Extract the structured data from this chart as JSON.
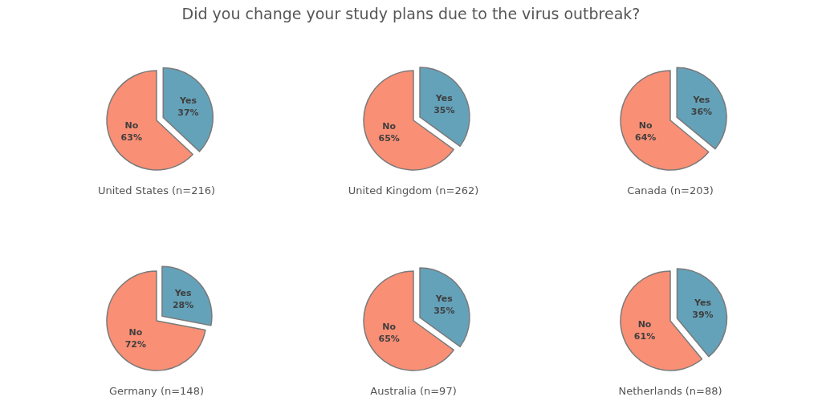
{
  "chart_data": [
    {
      "type": "pie",
      "title": "Did you change your study plans due to the virus outbreak?",
      "xlabel": "United States (n=216)",
      "categories": [
        "Yes",
        "No"
      ],
      "values": [
        37,
        63
      ],
      "value_labels": [
        "37%",
        "63%"
      ],
      "colors": [
        "#64a2ba",
        "#f98f75"
      ]
    },
    {
      "type": "pie",
      "xlabel": "United Kingdom (n=262)",
      "categories": [
        "Yes",
        "No"
      ],
      "values": [
        35,
        65
      ],
      "value_labels": [
        "35%",
        "65%"
      ],
      "colors": [
        "#64a2ba",
        "#f98f75"
      ]
    },
    {
      "type": "pie",
      "xlabel": "Canada (n=203)",
      "categories": [
        "Yes",
        "No"
      ],
      "values": [
        36,
        64
      ],
      "value_labels": [
        "36%",
        "64%"
      ],
      "colors": [
        "#64a2ba",
        "#f98f75"
      ]
    },
    {
      "type": "pie",
      "xlabel": "Germany (n=148)",
      "categories": [
        "Yes",
        "No"
      ],
      "values": [
        28,
        72
      ],
      "value_labels": [
        "28%",
        "72%"
      ],
      "colors": [
        "#64a2ba",
        "#f98f75"
      ]
    },
    {
      "type": "pie",
      "xlabel": "Australia (n=97)",
      "categories": [
        "Yes",
        "No"
      ],
      "values": [
        35,
        65
      ],
      "value_labels": [
        "35%",
        "65%"
      ],
      "colors": [
        "#64a2ba",
        "#f98f75"
      ]
    },
    {
      "type": "pie",
      "xlabel": "Netherlands (n=88)",
      "categories": [
        "Yes",
        "No"
      ],
      "values": [
        39,
        61
      ],
      "value_labels": [
        "39%",
        "61%"
      ],
      "colors": [
        "#64a2ba",
        "#f98f75"
      ]
    }
  ]
}
